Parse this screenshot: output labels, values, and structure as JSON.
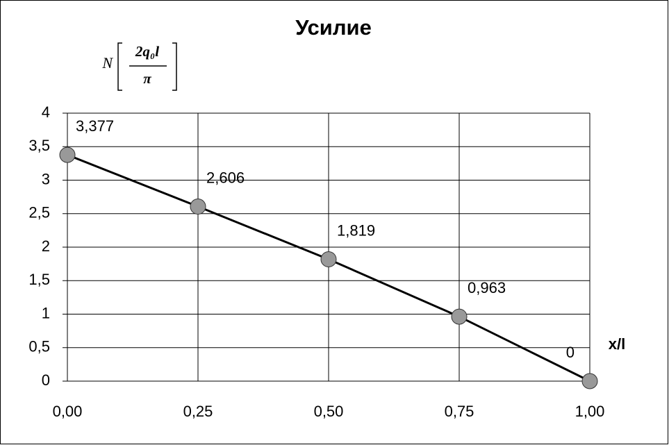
{
  "chart_data": {
    "type": "line",
    "title": "Усилие",
    "ylabel": {
      "symbol": "N",
      "numerator": "2q₀l",
      "denominator": "π"
    },
    "xlabel": "x/l",
    "x": [
      0,
      0.25,
      0.5,
      0.75,
      1
    ],
    "series": [
      {
        "color": "#000000",
        "marker_color": "#999999",
        "values": [
          3.377,
          2.606,
          1.819,
          0.963,
          0
        ],
        "value_labels": [
          "3,377",
          "2,606",
          "1,819",
          "0,963",
          "0"
        ]
      }
    ],
    "xlim": [
      0,
      1
    ],
    "ylim": [
      0,
      4
    ],
    "xticks": [
      {
        "value": 0,
        "label": "0,00"
      },
      {
        "value": 0.25,
        "label": "0,25"
      },
      {
        "value": 0.5,
        "label": "0,50"
      },
      {
        "value": 0.75,
        "label": "0,75"
      },
      {
        "value": 1,
        "label": "1,00"
      }
    ],
    "yticks": [
      0,
      {
        "value": 0.5,
        "label": "0,5"
      },
      1,
      {
        "value": 1.5,
        "label": "1,5"
      },
      2,
      {
        "value": 2.5,
        "label": "2,5"
      },
      3,
      {
        "value": 3.5,
        "label": "3,5"
      },
      4
    ],
    "grid": true
  }
}
